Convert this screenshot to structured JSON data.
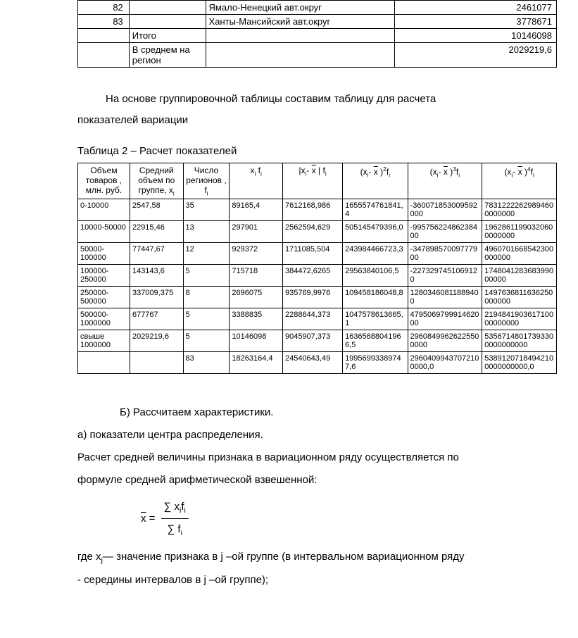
{
  "table1": {
    "rows": [
      {
        "n": "82",
        "group": "",
        "region": "Ямало-Ненецкий авт.округ",
        "val": "2461077"
      },
      {
        "n": "83",
        "group": "",
        "region": "Ханты-Мансийский авт.округ",
        "val": "3778671"
      },
      {
        "n": "",
        "group": "Итого",
        "region": "",
        "val": "10146098"
      },
      {
        "n": "",
        "group": "В среднем на регион",
        "region": "",
        "val": "2029219,6"
      }
    ]
  },
  "para1_a": "На основе группировочной таблицы составим  таблицу для расчета",
  "para1_b": "показателей вариации",
  "caption2": "Таблица 2 – Расчет показателей",
  "table2": {
    "headers": {
      "c1": "Объем товаров , млн. руб.",
      "c2_a": "Средний объем по группе, x",
      "c3_a": "Число регионов , f",
      "c4_a": "x",
      "c4_b": " f",
      "c5_a": "|x",
      "c5_b": "- ",
      "c5_c": "x",
      "c5_d": " | f",
      "c6_a": "(x",
      "c6_b": "- ",
      "c6_c": "x",
      "c6_d": " )",
      "c6_e": "f",
      "c7_a": "(x",
      "c7_b": "- ",
      "c7_c": "x",
      "c7_d": " )",
      "c7_e": "f",
      "c8_a": "(x",
      "c8_b": "- ",
      "c8_c": "x",
      "c8_d": " )",
      "c8_e": "f"
    },
    "rows": [
      {
        "c1": "0-10000",
        "c2": "2547,58",
        "c3": "35",
        "c4": "89165,4",
        "c5": "7612168,986",
        "c6": "1655574761841,4",
        "c7": "-360071853009592000",
        "c8": "78312222629894600000000"
      },
      {
        "c1": "10000-50000",
        "c2": "22915,46",
        "c3": "13",
        "c4": "297901",
        "c5": "2562594,629",
        "c6": "505145479396,0",
        "c7": "-99575622486238400",
        "c8": "19628611990320600000000"
      },
      {
        "c1": "50000-100000",
        "c2": "77447,67",
        "c3": "12",
        "c4": "929372",
        "c5": "1711085,504",
        "c6": "243984466723,3",
        "c7": "-34789857009777900",
        "c8": "4960701668542300000000"
      },
      {
        "c1": "100000-250000",
        "c2": "143143,6",
        "c3": "5",
        "c4": "715718",
        "c5": "384472,6265",
        "c6": "29563840106,5",
        "c7": "-2273297451069120",
        "c8": "174804128368399000000"
      },
      {
        "c1": "250000-500000",
        "c2": "337009,375",
        "c3": "8",
        "c4": "2696075",
        "c5": "935769,9976",
        "c6": "109458186048,8",
        "c7": "12803460811889400",
        "c8": "1497636811636250000000"
      },
      {
        "c1": "500000-1000000",
        "c2": "677767",
        "c3": "5",
        "c4": "3388835",
        "c5": "2288644,373",
        "c6": "1047578613665,1",
        "c7": "479506979991462000",
        "c8": "219484190361710000000000"
      },
      {
        "c1": "свыше 1000000",
        "c2": "2029219,6",
        "c3": "5",
        "c4": "10146098",
        "c5": "9045907,373",
        "c6": "16365688041966,5",
        "c7": "29608499626225500000",
        "c8": "53567148017393300000000000"
      },
      {
        "c1": "",
        "c2": "",
        "c3": "83",
        "c4": "18263164,4",
        "c5": "24540643,49",
        "c6": "19956993389747,6",
        "c7": "29604099437072100000,0",
        "c8": "53891207184942100000000000,0"
      }
    ],
    "col_widths": [
      "70",
      "70",
      "60",
      "70",
      "80",
      "95",
      "110",
      "110"
    ]
  },
  "sectionB": {
    "title": "Б) Рассчитаем характеристики.",
    "a": "а) показатели центра распределения.",
    "line1": "Расчет средней величины признака в вариационном ряду осуществляется по",
    "line2": "формуле средней  арифметической взвешенной:",
    "formula_x": "x",
    "formula_eq": " = ",
    "formula_num": "∑ x",
    "formula_num2": "f",
    "formula_den": "∑ f",
    "where_a": "где  x",
    "where_b": "— значение признака в j –ой группе (в интервальном вариационном ряду",
    "where_c": "- середины интервалов  в j –ой группе);"
  }
}
